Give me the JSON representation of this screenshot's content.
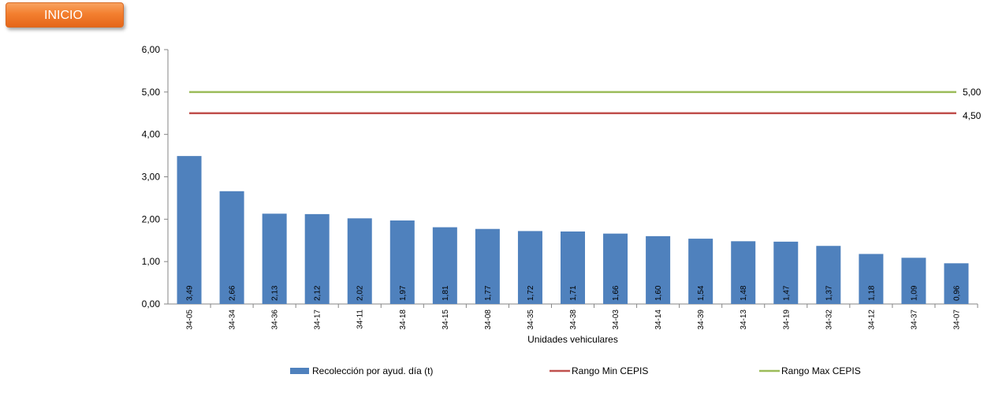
{
  "nav": {
    "inicio_label": "INICIO"
  },
  "chart_data": {
    "type": "bar",
    "xlabel": "Unidades vehiculares",
    "ylabel": "",
    "ylim": [
      0,
      6
    ],
    "yticks": [
      "0,00",
      "1,00",
      "2,00",
      "3,00",
      "4,00",
      "5,00",
      "6,00"
    ],
    "categories": [
      "34-05",
      "34-34",
      "34-36",
      "34-17",
      "34-11",
      "34-18",
      "34-15",
      "34-08",
      "34-35",
      "34-38",
      "34-03",
      "34-14",
      "34-39",
      "34-13",
      "34-19",
      "34-32",
      "34-12",
      "34-37",
      "34-07"
    ],
    "series": [
      {
        "name": "Recolección por ayud. día (t)",
        "type": "bar",
        "color": "#4f81bd",
        "values": [
          3.49,
          2.66,
          2.13,
          2.12,
          2.02,
          1.97,
          1.81,
          1.77,
          1.72,
          1.71,
          1.66,
          1.6,
          1.54,
          1.48,
          1.47,
          1.37,
          1.18,
          1.09,
          0.96
        ],
        "labels": [
          "3,49",
          "2,66",
          "2,13",
          "2,12",
          "2,02",
          "1,97",
          "1,81",
          "1,77",
          "1,72",
          "1,71",
          "1,66",
          "1,60",
          "1,54",
          "1,48",
          "1,47",
          "1,37",
          "1,18",
          "1,09",
          "0,96"
        ]
      },
      {
        "name": "Rango Min CEPIS",
        "type": "line",
        "color": "#c0504d",
        "value": 4.5,
        "end_label": "4,50"
      },
      {
        "name": "Rango Max CEPIS",
        "type": "line",
        "color": "#9bbb59",
        "value": 5.0,
        "end_label": "5,00"
      }
    ],
    "legend_position": "bottom",
    "grid": false
  }
}
